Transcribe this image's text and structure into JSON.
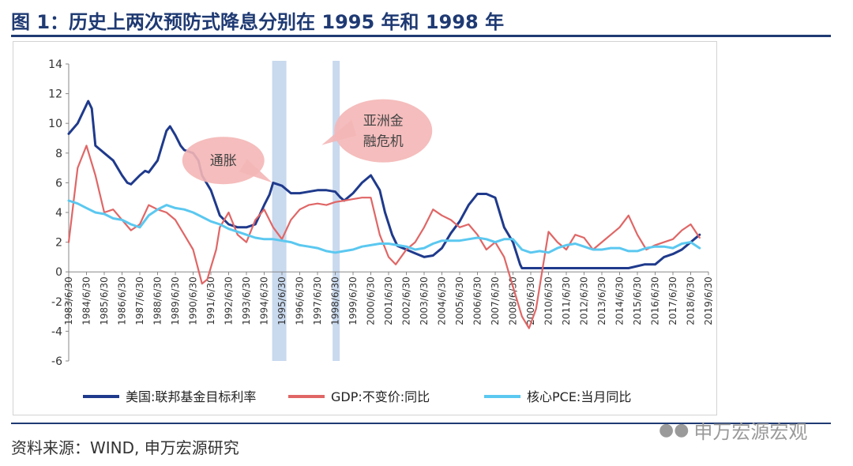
{
  "title": "图 1：历史上两次预防式降息分别在 1995 年和 1998 年",
  "source": "资料来源：WIND, 申万宏源研究",
  "watermark": {
    "icon": "wechat-icon",
    "text": "申万宏源宏观"
  },
  "colors": {
    "fed": "#1f3a8c",
    "gdp": "#e06666",
    "pce": "#5bc8f0",
    "band": "#c9d9ee",
    "bubble": "#f4b6b6",
    "title": "#1f3a73"
  },
  "chart_data": {
    "type": "line",
    "title": "",
    "xlabel": "",
    "ylabel": "",
    "ylim": [
      -6,
      14
    ],
    "yticks": [
      -6,
      -4,
      -2,
      0,
      2,
      4,
      6,
      8,
      10,
      12,
      14
    ],
    "x_range": [
      1983.5,
      2019.5
    ],
    "xticks": [
      "1983/6/30",
      "1984/6/30",
      "1985/6/30",
      "1986/6/30",
      "1987/6/30",
      "1988/6/30",
      "1989/6/30",
      "1990/6/30",
      "1991/6/30",
      "1992/6/30",
      "1993/6/30",
      "1994/6/30",
      "1995/6/30",
      "1996/6/30",
      "1997/6/30",
      "1998/6/30",
      "1999/6/30",
      "2000/6/30",
      "2001/6/30",
      "2002/6/30",
      "2003/6/30",
      "2004/6/30",
      "2005/6/30",
      "2006/6/30",
      "2007/6/30",
      "2008/6/30",
      "2009/6/30",
      "2010/6/30",
      "2011/6/30",
      "2012/6/30",
      "2013/6/30",
      "2014/6/30",
      "2015/6/30",
      "2016/6/30",
      "2017/6/30",
      "2018/6/30",
      "2019/6/30"
    ],
    "legend_position": "bottom",
    "bands": [
      {
        "start": 1994.95,
        "end": 1995.75
      },
      {
        "start": 1998.35,
        "end": 1998.75
      }
    ],
    "annotations": [
      {
        "text": "通胀",
        "x": 1992.2,
        "y": 7.5
      },
      {
        "text": "亚洲金\n融危机",
        "x": 2001.2,
        "y": 9.5
      }
    ],
    "series": [
      {
        "name": "美国:联邦基金目标利率",
        "color": "#1f3a8c",
        "x": [
          1983.5,
          1984.0,
          1984.6,
          1984.8,
          1985.0,
          1985.5,
          1986.0,
          1986.5,
          1986.8,
          1987.0,
          1987.5,
          1987.8,
          1988.0,
          1988.5,
          1989.0,
          1989.2,
          1989.5,
          1989.8,
          1990.0,
          1990.5,
          1990.8,
          1991.0,
          1991.5,
          1991.8,
          1992.0,
          1992.5,
          1993.0,
          1993.5,
          1994.0,
          1994.5,
          1994.8,
          1995.0,
          1995.5,
          1996.0,
          1996.5,
          1997.0,
          1997.5,
          1998.0,
          1998.5,
          1998.8,
          1999.0,
          1999.5,
          2000.0,
          2000.5,
          2001.0,
          2001.3,
          2001.7,
          2002.0,
          2002.5,
          2003.0,
          2003.5,
          2004.0,
          2004.5,
          2005.0,
          2005.5,
          2006.0,
          2006.5,
          2007.0,
          2007.5,
          2008.0,
          2008.5,
          2008.9,
          2009.0,
          2010.0,
          2011.0,
          2012.0,
          2013.0,
          2014.0,
          2015.0,
          2015.9,
          2016.5,
          2017.0,
          2017.5,
          2018.0,
          2018.5,
          2019.0
        ],
        "values": [
          9.3,
          10.0,
          11.5,
          11.0,
          8.5,
          8.0,
          7.5,
          6.5,
          6.0,
          5.9,
          6.5,
          6.8,
          6.7,
          7.5,
          9.5,
          9.8,
          9.2,
          8.5,
          8.2,
          8.0,
          7.5,
          6.5,
          5.5,
          4.5,
          3.8,
          3.2,
          3.0,
          3.0,
          3.2,
          4.5,
          5.2,
          6.0,
          5.8,
          5.3,
          5.3,
          5.4,
          5.5,
          5.5,
          5.4,
          5.0,
          4.8,
          5.3,
          6.0,
          6.5,
          5.5,
          4.0,
          2.5,
          1.75,
          1.5,
          1.25,
          1.0,
          1.1,
          1.6,
          2.6,
          3.4,
          4.5,
          5.25,
          5.25,
          5.0,
          3.0,
          2.0,
          0.5,
          0.25,
          0.25,
          0.25,
          0.25,
          0.25,
          0.25,
          0.25,
          0.5,
          0.5,
          1.0,
          1.2,
          1.5,
          2.0,
          2.5
        ]
      },
      {
        "name": "GDP:不变价:同比",
        "color": "#e06666",
        "x": [
          1983.5,
          1984.0,
          1984.5,
          1985.0,
          1985.5,
          1986.0,
          1986.5,
          1987.0,
          1987.5,
          1988.0,
          1988.5,
          1989.0,
          1989.5,
          1990.0,
          1990.5,
          1991.0,
          1991.3,
          1991.8,
          1992.0,
          1992.5,
          1993.0,
          1993.5,
          1994.0,
          1994.5,
          1995.0,
          1995.5,
          1996.0,
          1996.5,
          1997.0,
          1997.5,
          1998.0,
          1998.5,
          1999.0,
          1999.5,
          2000.0,
          2000.5,
          2001.0,
          2001.5,
          2001.9,
          2002.5,
          2003.0,
          2003.5,
          2004.0,
          2004.5,
          2005.0,
          2005.5,
          2006.0,
          2006.5,
          2007.0,
          2007.5,
          2008.0,
          2008.5,
          2009.0,
          2009.4,
          2009.8,
          2010.5,
          2011.0,
          2011.5,
          2012.0,
          2012.5,
          2013.0,
          2013.5,
          2014.0,
          2014.5,
          2015.0,
          2015.5,
          2016.0,
          2016.5,
          2017.0,
          2017.5,
          2018.0,
          2018.5,
          2019.0
        ],
        "values": [
          2.0,
          7.0,
          8.5,
          6.5,
          4.0,
          4.2,
          3.5,
          2.8,
          3.2,
          4.5,
          4.2,
          4.0,
          3.5,
          2.5,
          1.5,
          -0.8,
          -0.5,
          1.5,
          3.0,
          4.0,
          2.5,
          2.0,
          3.5,
          4.2,
          3.0,
          2.2,
          3.5,
          4.2,
          4.5,
          4.6,
          4.5,
          4.7,
          4.8,
          4.9,
          5.0,
          5.0,
          2.5,
          1.0,
          0.5,
          1.5,
          2.0,
          3.0,
          4.2,
          3.8,
          3.5,
          3.0,
          3.2,
          2.5,
          1.5,
          2.0,
          1.0,
          -1.0,
          -3.0,
          -3.8,
          -2.5,
          2.7,
          2.0,
          1.5,
          2.5,
          2.3,
          1.5,
          2.0,
          2.5,
          3.0,
          3.8,
          2.5,
          1.5,
          1.8,
          2.0,
          2.2,
          2.8,
          3.2,
          2.3
        ]
      },
      {
        "name": "核心PCE:当月同比",
        "color": "#5bc8f0",
        "x": [
          1983.5,
          1984.0,
          1984.5,
          1985.0,
          1985.5,
          1986.0,
          1986.5,
          1987.0,
          1987.5,
          1988.0,
          1988.5,
          1989.0,
          1989.5,
          1990.0,
          1990.5,
          1991.0,
          1991.5,
          1992.0,
          1992.5,
          1993.0,
          1993.5,
          1994.0,
          1994.5,
          1995.0,
          1995.5,
          1996.0,
          1996.5,
          1997.0,
          1997.5,
          1998.0,
          1998.5,
          1999.0,
          1999.5,
          2000.0,
          2000.5,
          2001.0,
          2001.5,
          2002.0,
          2002.5,
          2003.0,
          2003.5,
          2004.0,
          2004.5,
          2005.0,
          2005.5,
          2006.0,
          2006.5,
          2007.0,
          2007.5,
          2008.0,
          2008.5,
          2009.0,
          2009.5,
          2010.0,
          2010.5,
          2011.0,
          2011.5,
          2012.0,
          2012.5,
          2013.0,
          2013.5,
          2014.0,
          2014.5,
          2015.0,
          2015.5,
          2016.0,
          2016.5,
          2017.0,
          2017.5,
          2018.0,
          2018.5,
          2019.0
        ],
        "values": [
          4.8,
          4.6,
          4.3,
          4.0,
          3.9,
          3.6,
          3.5,
          3.2,
          3.0,
          3.8,
          4.2,
          4.5,
          4.3,
          4.2,
          4.0,
          3.7,
          3.4,
          3.2,
          2.9,
          2.7,
          2.5,
          2.3,
          2.2,
          2.2,
          2.1,
          2.0,
          1.8,
          1.7,
          1.6,
          1.4,
          1.3,
          1.4,
          1.5,
          1.7,
          1.8,
          1.9,
          1.9,
          1.8,
          1.7,
          1.5,
          1.6,
          1.9,
          2.1,
          2.1,
          2.1,
          2.2,
          2.3,
          2.2,
          2.0,
          2.2,
          2.2,
          1.5,
          1.3,
          1.4,
          1.3,
          1.6,
          1.8,
          1.9,
          1.7,
          1.5,
          1.5,
          1.6,
          1.6,
          1.4,
          1.4,
          1.6,
          1.7,
          1.7,
          1.6,
          1.9,
          2.0,
          1.6
        ]
      }
    ]
  }
}
